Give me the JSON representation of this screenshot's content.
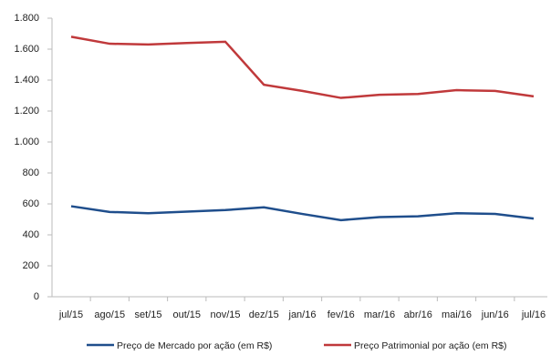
{
  "chart_data": {
    "type": "line",
    "categories": [
      "jul/15",
      "ago/15",
      "set/15",
      "out/15",
      "nov/15",
      "dez/15",
      "jan/16",
      "fev/16",
      "mar/16",
      "abr/16",
      "mai/16",
      "jun/16",
      "jul/16"
    ],
    "series": [
      {
        "name": "Preço  de Mercado por ação (em R$)",
        "color": "#1f4e8c",
        "values": [
          585,
          548,
          540,
          550,
          560,
          578,
          535,
          495,
          515,
          520,
          540,
          535,
          505
        ]
      },
      {
        "name": "Preço Patrimonial por ação (em R$)",
        "color": "#c0393b",
        "values": [
          1680,
          1635,
          1630,
          1640,
          1648,
          1370,
          1330,
          1285,
          1305,
          1310,
          1335,
          1330,
          1295
        ]
      }
    ],
    "ylim": [
      0,
      1800
    ],
    "yticks": [
      0,
      200,
      400,
      600,
      800,
      {
        "value": 1000,
        "label": "1.000"
      },
      {
        "value": 1200,
        "label": "1.200"
      },
      {
        "value": 1400,
        "label": "1.400"
      },
      {
        "value": 1600,
        "label": "1.600"
      },
      {
        "value": 1800,
        "label": "1.800"
      }
    ],
    "grid": false
  }
}
